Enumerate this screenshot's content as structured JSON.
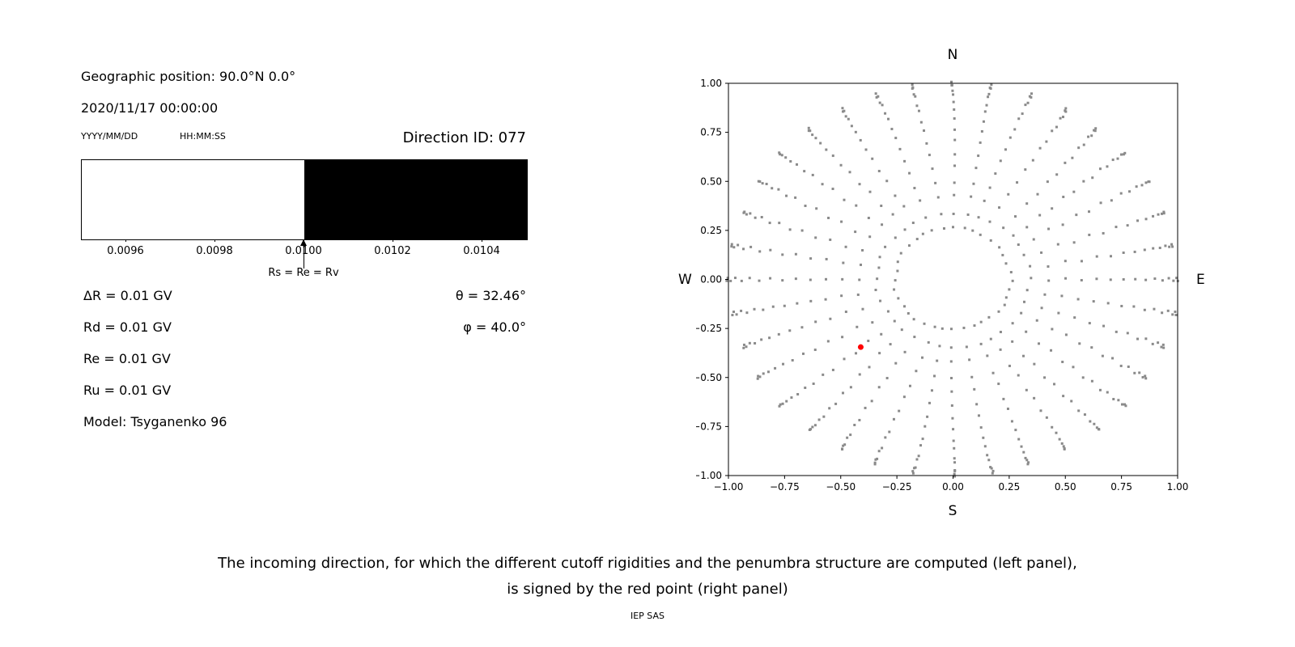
{
  "left_panel": {
    "geo_position": "Geographic position: 90.0°N 0.0°",
    "datetime": "2020/11/17 00:00:00",
    "date_format_label": "YYYY/MM/DD",
    "time_format_label": "HH:MM:SS",
    "direction_id": "Direction ID: 077",
    "rigidity_lines": {
      "delta_r": "ΔR = 0.01 GV",
      "rd": "Rd = 0.01 GV",
      "re": "Re = 0.01 GV",
      "ru": "Ru = 0.01 GV",
      "model": "Model: Tsyganenko 96"
    },
    "theta": "θ = 32.46°",
    "phi": "φ = 40.0°"
  },
  "right_panel": {
    "compass_n": "N",
    "compass_s": "S",
    "compass_e": "E",
    "compass_w": "W"
  },
  "caption": {
    "line1": "The incoming direction, for which the different cutoff rigidities and the penumbra structure are computed (left panel),",
    "line2": "is signed by the red point (right panel)",
    "credit": "IEP SAS"
  },
  "chart_data": [
    {
      "type": "area",
      "name": "penumbra-structure",
      "xlim": [
        0.0095,
        0.0105
      ],
      "ticks": [
        {
          "v": 0.0096,
          "label": "0.0096"
        },
        {
          "v": 0.0098,
          "label": "0.0098"
        },
        {
          "v": 0.01,
          "label": "0.0100"
        },
        {
          "v": 0.0102,
          "label": "0.0102"
        },
        {
          "v": 0.0104,
          "label": "0.0104"
        }
      ],
      "regions": [
        {
          "from": 0.0095,
          "to": 0.01,
          "color": "#ffffff",
          "meaning": "allowed"
        },
        {
          "from": 0.01,
          "to": 0.0105,
          "color": "#000000",
          "meaning": "forbidden"
        }
      ],
      "annotation": {
        "x": 0.01,
        "label": "Rs = Re = Rv"
      }
    },
    {
      "type": "scatter",
      "name": "incoming-direction-grid",
      "xlim": [
        -1,
        1
      ],
      "ylim": [
        -1,
        1
      ],
      "x_ticks": [
        {
          "v": -1.0,
          "label": "−1.00"
        },
        {
          "v": -0.75,
          "label": "−0.75"
        },
        {
          "v": -0.5,
          "label": "−0.50"
        },
        {
          "v": -0.25,
          "label": "−0.25"
        },
        {
          "v": 0.0,
          "label": "0.00"
        },
        {
          "v": 0.25,
          "label": "0.25"
        },
        {
          "v": 0.5,
          "label": "0.50"
        },
        {
          "v": 0.75,
          "label": "0.75"
        },
        {
          "v": 1.0,
          "label": "1.00"
        }
      ],
      "y_ticks": [
        {
          "v": 1.0,
          "label": "1.00"
        },
        {
          "v": 0.75,
          "label": "0.75"
        },
        {
          "v": 0.5,
          "label": "0.50"
        },
        {
          "v": 0.25,
          "label": "0.25"
        },
        {
          "v": 0.0,
          "label": "0.00"
        },
        {
          "v": -0.25,
          "label": "−0.25"
        },
        {
          "v": -0.5,
          "label": "−0.50"
        },
        {
          "v": -0.75,
          "label": "−0.75"
        },
        {
          "v": -1.0,
          "label": "−1.00"
        }
      ],
      "direction_grid": {
        "azimuth_count": 36,
        "zenith_deg": [
          15,
          20,
          25,
          30,
          35,
          40,
          45,
          50,
          55,
          60,
          65,
          70,
          75,
          80,
          85,
          90
        ],
        "radius_mapping": "sin(zenith)",
        "color": "#8a8a8a",
        "marker_px": 3,
        "jitter": 0.008
      },
      "selected_direction": {
        "x": -0.411,
        "y": -0.345,
        "color": "#ff0000",
        "marker_px": 7
      }
    }
  ]
}
